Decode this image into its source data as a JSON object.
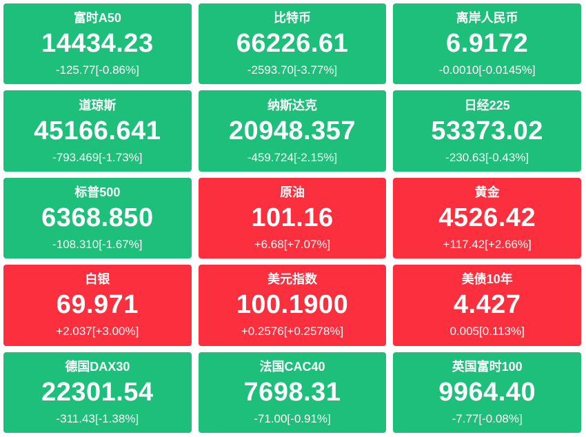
{
  "page": {
    "background": "#ffffff",
    "text_color": "#ffffff"
  },
  "colors": {
    "up": "#fb2f3d",
    "down": "#1ebe7b"
  },
  "tiles": [
    {
      "name": "富时A50",
      "price": "14434.23",
      "change": "-125.77[-0.86%]",
      "direction": "down"
    },
    {
      "name": "比特币",
      "price": "66226.61",
      "change": "-2593.70[-3.77%]",
      "direction": "down"
    },
    {
      "name": "离岸人民币",
      "price": "6.9172",
      "change": "-0.0010[-0.0145%]",
      "direction": "down"
    },
    {
      "name": "道琼斯",
      "price": "45166.641",
      "change": "-793.469[-1.73%]",
      "direction": "down"
    },
    {
      "name": "纳斯达克",
      "price": "20948.357",
      "change": "-459.724[-2.15%]",
      "direction": "down"
    },
    {
      "name": "日经225",
      "price": "53373.02",
      "change": "-230.63[-0.43%]",
      "direction": "down"
    },
    {
      "name": "标普500",
      "price": "6368.850",
      "change": "-108.310[-1.67%]",
      "direction": "down"
    },
    {
      "name": "原油",
      "price": "101.16",
      "change": "+6.68[+7.07%]",
      "direction": "up"
    },
    {
      "name": "黄金",
      "price": "4526.42",
      "change": "+117.42[+2.66%]",
      "direction": "up"
    },
    {
      "name": "白银",
      "price": "69.971",
      "change": "+2.037[+3.00%]",
      "direction": "up"
    },
    {
      "name": "美元指数",
      "price": "100.1900",
      "change": "+0.2576[+0.2578%]",
      "direction": "up"
    },
    {
      "name": "美债10年",
      "price": "4.427",
      "change": "0.005[0.113%]",
      "direction": "up"
    },
    {
      "name": "德国DAX30",
      "price": "22301.54",
      "change": "-311.43[-1.38%]",
      "direction": "down"
    },
    {
      "name": "法国CAC40",
      "price": "7698.31",
      "change": "-71.00[-0.91%]",
      "direction": "down"
    },
    {
      "name": "英国富时100",
      "price": "9964.40",
      "change": "-7.77[-0.08%]",
      "direction": "down"
    }
  ]
}
